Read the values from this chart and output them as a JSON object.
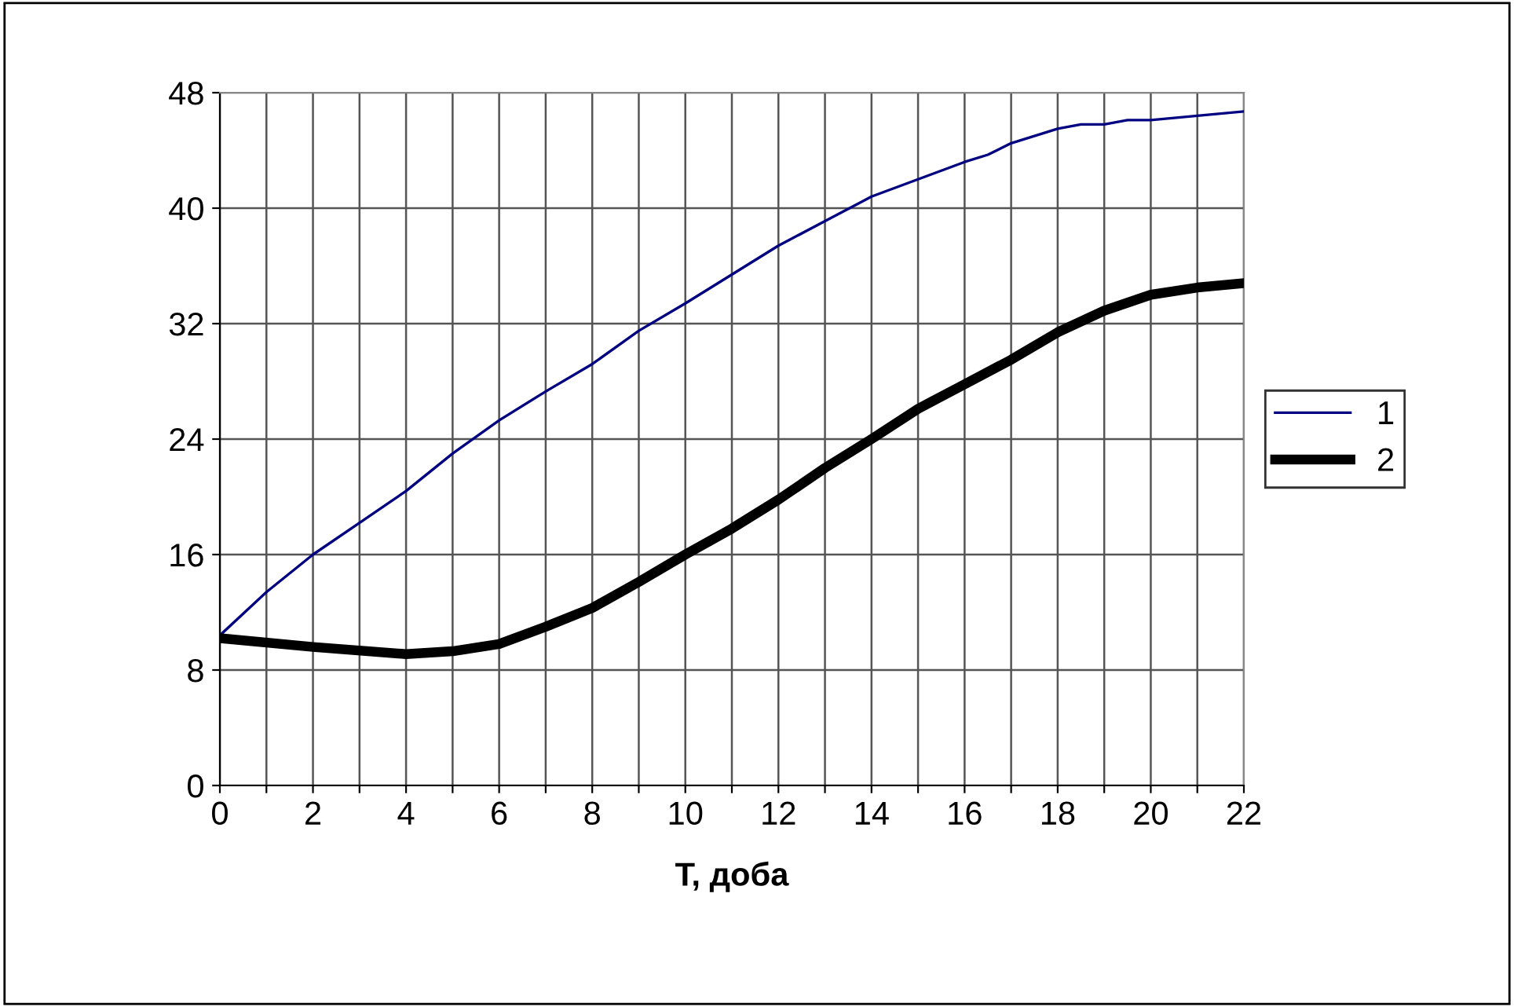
{
  "chart_data": {
    "type": "line",
    "xlabel": "T, доба",
    "x": [
      0,
      1,
      2,
      3,
      4,
      5,
      6,
      7,
      8,
      9,
      10,
      11,
      12,
      13,
      14,
      15,
      16,
      16.5,
      17,
      18,
      18.5,
      19,
      19.5,
      20,
      21,
      22
    ],
    "series": [
      {
        "name": "1",
        "color": "#000080",
        "values": [
          10.4,
          13.4,
          16,
          18.2,
          20.4,
          23,
          25.3,
          27.3,
          29.2,
          31.5,
          33.4,
          35.4,
          37.4,
          39.1,
          40.8,
          42,
          43.2,
          43.7,
          44.5,
          45.5,
          45.8,
          45.8,
          46.1,
          46.1,
          46.4,
          46.7
        ]
      },
      {
        "name": "2",
        "color": "#000000",
        "x": [
          0,
          2,
          4,
          5,
          6,
          7,
          8,
          9,
          10,
          11,
          12,
          13,
          14,
          15,
          16,
          17,
          18,
          19,
          20,
          21,
          22
        ],
        "values": [
          10.2,
          9.6,
          9.1,
          9.3,
          9.8,
          11,
          12.3,
          14.1,
          16,
          17.8,
          19.8,
          22,
          24,
          26.1,
          27.8,
          29.5,
          31.4,
          32.9,
          34,
          34.5,
          34.8
        ]
      }
    ],
    "xlim": [
      0,
      22
    ],
    "ylim": [
      0,
      48
    ],
    "xticks": [
      0,
      {
        "value": 1,
        "label": null
      },
      2,
      {
        "value": 3,
        "label": null
      },
      4,
      {
        "value": 5,
        "label": null
      },
      6,
      {
        "value": 7,
        "label": null
      },
      8,
      {
        "value": 9,
        "label": null
      },
      10,
      {
        "value": 11,
        "label": null
      },
      12,
      {
        "value": 13,
        "label": null
      },
      14,
      {
        "value": 15,
        "label": null
      },
      16,
      {
        "value": 17,
        "label": null
      },
      18,
      {
        "value": 19,
        "label": null
      },
      20,
      {
        "value": 21,
        "label": null
      },
      22
    ],
    "yticks": [
      0,
      8,
      16,
      24,
      32,
      40,
      48
    ],
    "grid": true,
    "legend": "right",
    "marker": "none",
    "line_style": "solid"
  }
}
